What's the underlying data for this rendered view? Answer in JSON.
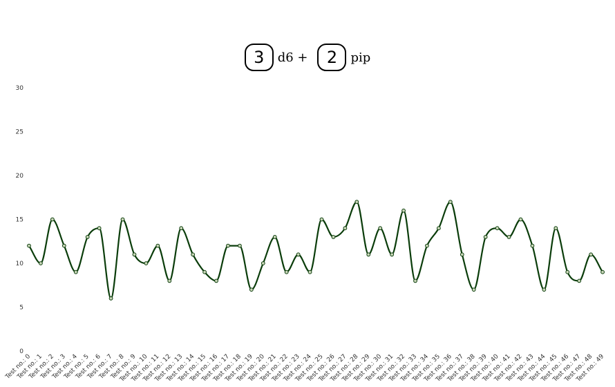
{
  "header": {
    "dice_count": "3",
    "dice_label": "d6 +",
    "pip_count": "2",
    "pip_label": "pip"
  },
  "chart_data": {
    "type": "line",
    "categories": [
      "Test no.: 0",
      "Test no.: 1",
      "Test no.: 2",
      "Test no.: 3",
      "Test no.: 4",
      "Test no.: 5",
      "Test no.: 6",
      "Test no.: 7",
      "Test no.: 8",
      "Test no.: 9",
      "Test no.: 10",
      "Test no.: 11",
      "Test no.: 12",
      "Test no.: 13",
      "Test no.: 14",
      "Test no.: 15",
      "Test no.: 16",
      "Test no.: 17",
      "Test no.: 18",
      "Test no.: 19",
      "Test no.: 20",
      "Test no.: 21",
      "Test no.: 22",
      "Test no.: 23",
      "Test no.: 24",
      "Test no.: 25",
      "Test no.: 26",
      "Test no.: 27",
      "Test no.: 28",
      "Test no.: 29",
      "Test no.: 30",
      "Test no.: 31",
      "Test no.: 32",
      "Test no.: 33",
      "Test no.: 34",
      "Test no.: 35",
      "Test no.: 36",
      "Test no.: 37",
      "Test no.: 38",
      "Test no.: 39",
      "Test no.: 40",
      "Test no.: 41",
      "Test no.: 42",
      "Test no.: 43",
      "Test no.: 44",
      "Test no.: 45",
      "Test no.: 46",
      "Test no.: 47",
      "Test no.: 48",
      "Test no.: 49"
    ],
    "series": [
      {
        "values": [
          12,
          10,
          15,
          12,
          9,
          13,
          14,
          6,
          15,
          11,
          10,
          12,
          8,
          14,
          11,
          9,
          8,
          12,
          12,
          7,
          10,
          13,
          9,
          11,
          9,
          15,
          13,
          14,
          17,
          11,
          14,
          11,
          16,
          8,
          12,
          14,
          17,
          11,
          7,
          13,
          14,
          13,
          15,
          12,
          7,
          14,
          9,
          8,
          11,
          9
        ]
      }
    ],
    "yticks": [
      0,
      5,
      10,
      15,
      20,
      25,
      30
    ],
    "ylim": [
      0,
      30
    ],
    "grid": false,
    "legend": "none",
    "line_color": "#0b3d0b",
    "marker_fill": "#c9d6b8"
  }
}
